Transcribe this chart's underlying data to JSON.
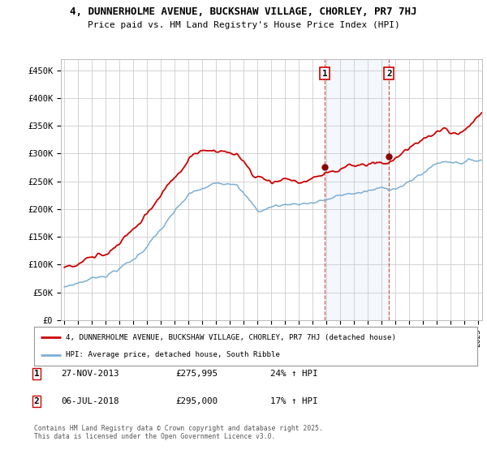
{
  "title_line1": "4, DUNNERHOLME AVENUE, BUCKSHAW VILLAGE, CHORLEY, PR7 7HJ",
  "title_line2": "Price paid vs. HM Land Registry's House Price Index (HPI)",
  "ylabel_ticks": [
    "£0",
    "£50K",
    "£100K",
    "£150K",
    "£200K",
    "£250K",
    "£300K",
    "£350K",
    "£400K",
    "£450K"
  ],
  "ytick_values": [
    0,
    50000,
    100000,
    150000,
    200000,
    250000,
    300000,
    350000,
    400000,
    450000
  ],
  "ylim": [
    0,
    470000
  ],
  "xlim_start": 1995.0,
  "xlim_end": 2025.3,
  "red_color": "#cc0000",
  "blue_color": "#7bafd4",
  "marker1_x": 2013.9,
  "marker2_x": 2018.55,
  "marker1_label": "1",
  "marker2_label": "2",
  "legend_house": "4, DUNNERHOLME AVENUE, BUCKSHAW VILLAGE, CHORLEY, PR7 7HJ (detached house)",
  "legend_hpi": "HPI: Average price, detached house, South Ribble",
  "annotation1_date": "27-NOV-2013",
  "annotation1_price": "£275,995",
  "annotation1_hpi": "24% ↑ HPI",
  "annotation2_date": "06-JUL-2018",
  "annotation2_price": "£295,000",
  "annotation2_hpi": "17% ↑ HPI",
  "footer": "Contains HM Land Registry data © Crown copyright and database right 2025.\nThis data is licensed under the Open Government Licence v3.0.",
  "background_color": "#ffffff",
  "plot_bg_color": "#ffffff",
  "grid_color": "#cccccc"
}
